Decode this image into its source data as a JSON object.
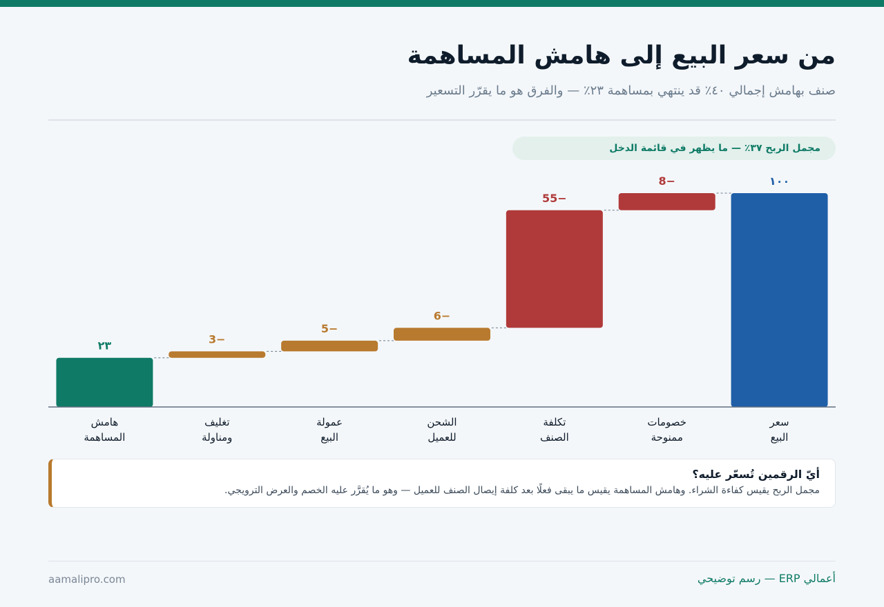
{
  "header": {
    "title": "من سعر البيع إلى هامش المساهمة",
    "subtitle": "صنف بهامش إجمالي ٤٠٪ قد ينتهي بمساهمة ٢٣٪ — والفرق هو ما يقرّر التسعير"
  },
  "callout": "مجمل الربح ٣٧٪ — ما يظهر في قائمة الدخل",
  "colors": {
    "total": "#1f5fa8",
    "major_deduction": "#b03a3a",
    "minor_deduction": "#b87a2e",
    "result": "#0f7b66",
    "axis": "#5e6f80",
    "connector": "#6a7b8c",
    "category_text": "#0f1c2b"
  },
  "chart_data": {
    "type": "waterfall",
    "title": "",
    "xlabel": "",
    "ylabel": "",
    "ylim": [
      0,
      100
    ],
    "categories": [
      [
        "سعر",
        "البيع"
      ],
      [
        "خصومات",
        "ممنوحة"
      ],
      [
        "تكلفة",
        "الصنف"
      ],
      [
        "الشحن",
        "للعميل"
      ],
      [
        "عمولة",
        "البيع"
      ],
      [
        "تغليف",
        "ومناولة"
      ],
      [
        "هامش",
        "المساهمة"
      ]
    ],
    "steps": [
      {
        "kind": "total",
        "value": 100,
        "label": "١٠٠",
        "color": "total"
      },
      {
        "kind": "delta",
        "value": -8,
        "label": "−8",
        "color": "major_deduction"
      },
      {
        "kind": "delta",
        "value": -55,
        "label": "−55",
        "color": "major_deduction"
      },
      {
        "kind": "delta",
        "value": -6,
        "label": "−6",
        "color": "minor_deduction"
      },
      {
        "kind": "delta",
        "value": -5,
        "label": "−5",
        "color": "minor_deduction"
      },
      {
        "kind": "delta",
        "value": -3,
        "label": "−3",
        "color": "minor_deduction"
      },
      {
        "kind": "total",
        "value": 23,
        "label": "٢٣",
        "color": "result"
      }
    ]
  },
  "note": {
    "title": "أيّ الرقمين تُسعّر عليه؟",
    "body": "مجمل الربح يقيس كفاءة الشراء. وهامش المساهمة يقيس ما يبقى فعلًا بعد كلفة إيصال الصنف للعميل — وهو ما يُقرَّر عليه الخصم والعرض الترويجي."
  },
  "footer": {
    "brand": "أعمالي ERP — رسم توضيحي",
    "site": "aamalipro.com"
  }
}
